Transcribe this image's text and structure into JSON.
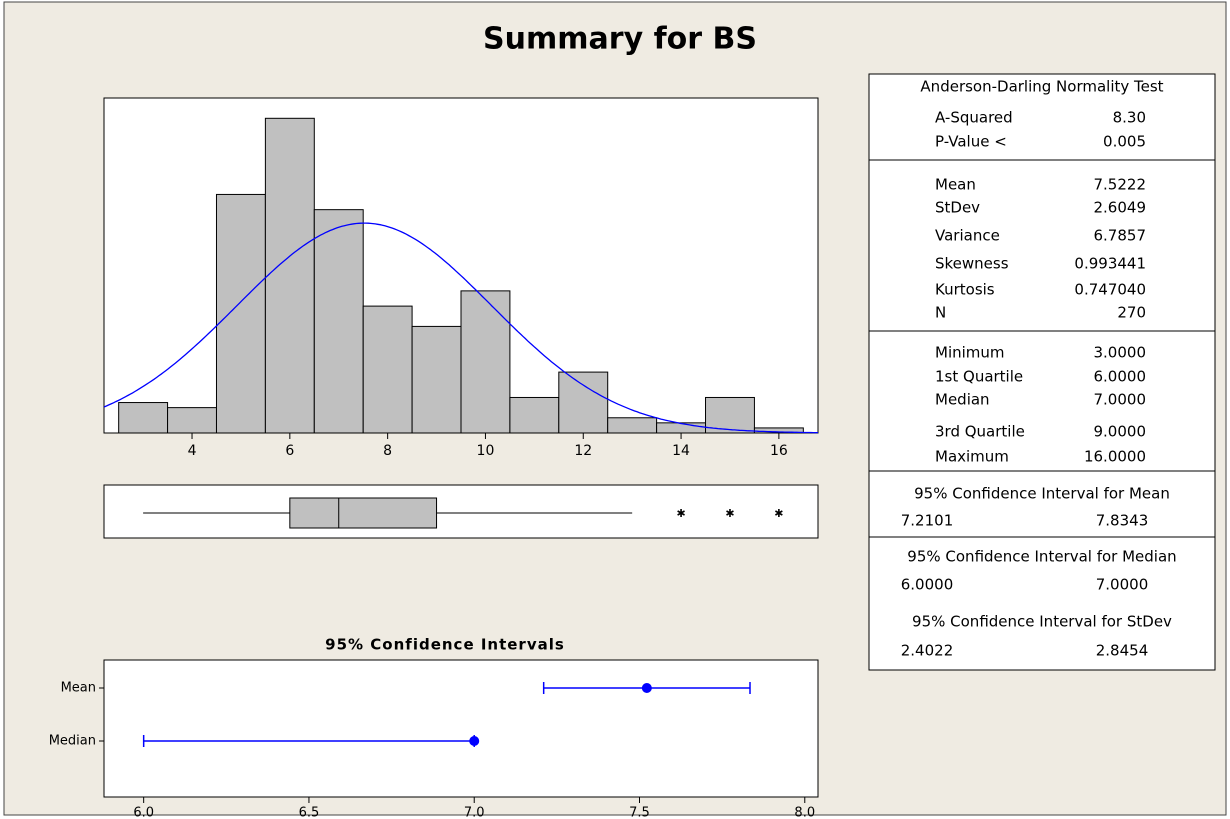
{
  "title": "Summary for BS",
  "chart_data": [
    {
      "type": "histogram",
      "bins": [
        2.5,
        3.5,
        4.5,
        5.5,
        6.5,
        7.5,
        8.5,
        9.5,
        10.5,
        11.5,
        12.5,
        13.5,
        14.5,
        15.5,
        16.5
      ],
      "values": [
        6,
        5,
        47,
        62,
        44,
        25,
        21,
        28,
        7,
        12,
        3,
        2,
        7,
        1
      ],
      "color": "#c0c0c0",
      "line_color": "#0000ff",
      "xlim": [
        2.2,
        16.8
      ],
      "ylim": [
        0,
        66
      ],
      "xticks": [
        4,
        6,
        8,
        10,
        12,
        14,
        16
      ]
    },
    {
      "type": "boxplot",
      "whisker_low": 3,
      "q1": 6,
      "median": 7,
      "q3": 9,
      "whisker_high": 13,
      "outliers": [
        14,
        15,
        16
      ],
      "color": "#c0c0c0",
      "xlim": [
        2.2,
        16.8
      ]
    },
    {
      "type": "interval",
      "title": "95% Confidence Intervals",
      "categories": [
        "Mean",
        "Median"
      ],
      "values": [
        7.5222,
        7
      ],
      "lower": [
        7.2101,
        6
      ],
      "upper": [
        7.8343,
        7
      ],
      "color": "#0000ff",
      "xlim": [
        5.88,
        8.04
      ],
      "xticks": [
        {
          "value": 6,
          "label": "6.0"
        },
        {
          "value": 6.5,
          "label": "6.5"
        },
        {
          "value": 7,
          "label": "7.0"
        },
        {
          "value": 7.5,
          "label": "7.5"
        },
        {
          "value": 8,
          "label": "8.0"
        }
      ]
    }
  ],
  "stats": {
    "sections": [
      {
        "title": "Anderson-Darling Normality Test",
        "rows": [
          [
            "A-Squared",
            "8.30"
          ],
          [
            "P-Value <",
            "0.005"
          ]
        ]
      },
      {
        "rows": [
          [
            "Mean",
            "7.5222"
          ],
          [
            "StDev",
            "2.6049"
          ],
          [
            "Variance",
            "6.7857"
          ],
          [
            "Skewness",
            "0.993441"
          ],
          [
            "Kurtosis",
            "0.747040"
          ],
          [
            "N",
            "270"
          ]
        ]
      },
      {
        "rows": [
          [
            "Minimum",
            "3.0000"
          ],
          [
            "1st Quartile",
            "6.0000"
          ],
          [
            "Median",
            "7.0000"
          ],
          [
            "3rd Quartile",
            "9.0000"
          ],
          [
            "Maximum",
            "16.0000"
          ]
        ]
      },
      {
        "title": "95% Confidence Interval for Mean",
        "rows": [
          [
            "7.2101",
            "7.8343"
          ]
        ]
      },
      {
        "title": "95% Confidence Interval for Median",
        "rows": [
          [
            "6.0000",
            "7.0000"
          ]
        ]
      },
      {
        "title": "95% Confidence Interval for StDev",
        "rows": [
          [
            "2.4022",
            "2.8454"
          ]
        ]
      }
    ]
  }
}
